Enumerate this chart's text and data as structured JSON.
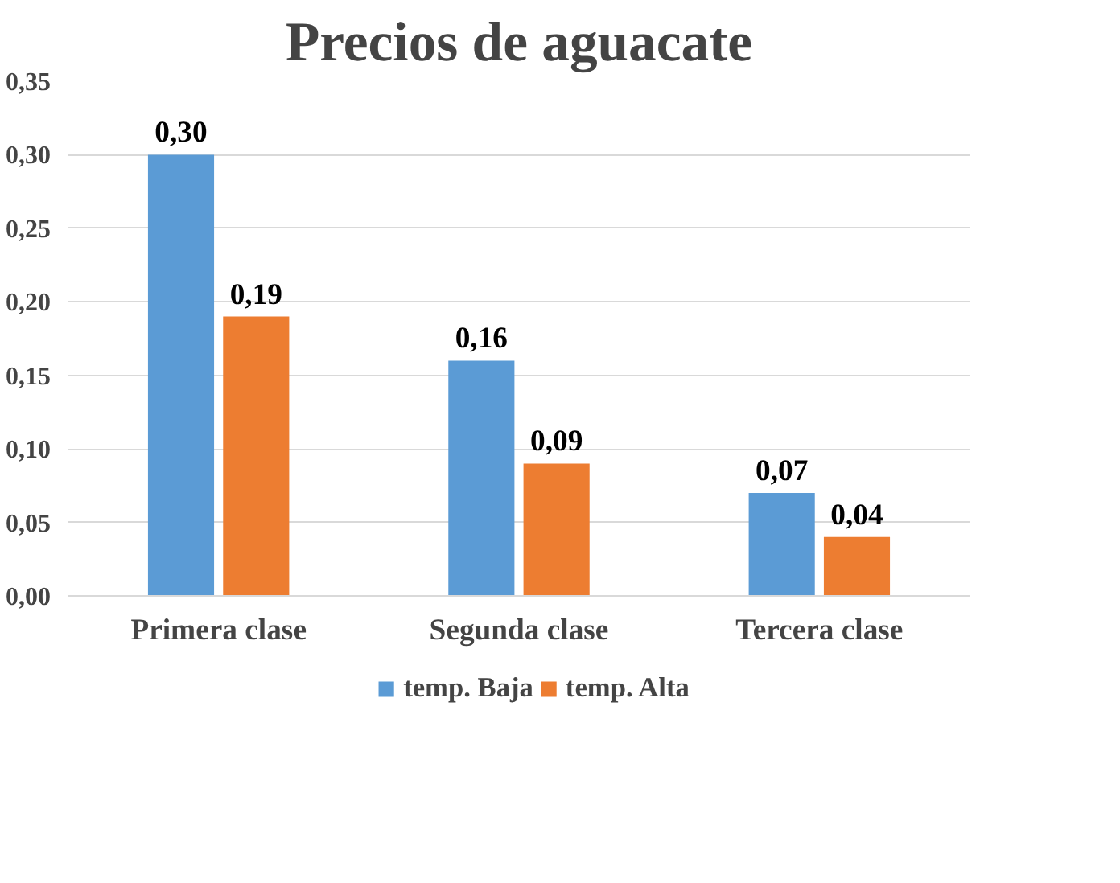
{
  "chart_data": {
    "type": "bar",
    "title": "Precios de aguacate",
    "categories": [
      "Primera clase",
      "Segunda clase",
      "Tercera clase"
    ],
    "series": [
      {
        "name": "temp. Baja",
        "color": "#5b9bd5",
        "values": [
          0.3,
          0.16,
          0.07
        ],
        "value_labels": [
          "0,30",
          "0,16",
          "0,07"
        ]
      },
      {
        "name": "temp. Alta",
        "color": "#ed7d31",
        "values": [
          0.19,
          0.09,
          0.04
        ],
        "value_labels": [
          "0,19",
          "0,09",
          "0,04"
        ]
      }
    ],
    "ylim": [
      0,
      0.35
    ],
    "yticks": [
      {
        "value": 0,
        "label": "0,00"
      },
      {
        "value": 0.05,
        "label": "0,05"
      },
      {
        "value": 0.1,
        "label": "0,10"
      },
      {
        "value": 0.15,
        "label": "0,15"
      },
      {
        "value": 0.2,
        "label": "0,20"
      },
      {
        "value": 0.25,
        "label": "0,25"
      },
      {
        "value": 0.3,
        "label": "0,30"
      },
      {
        "value": 0.35,
        "label": "0,35"
      }
    ],
    "grid": "y",
    "legend": "bottom"
  }
}
